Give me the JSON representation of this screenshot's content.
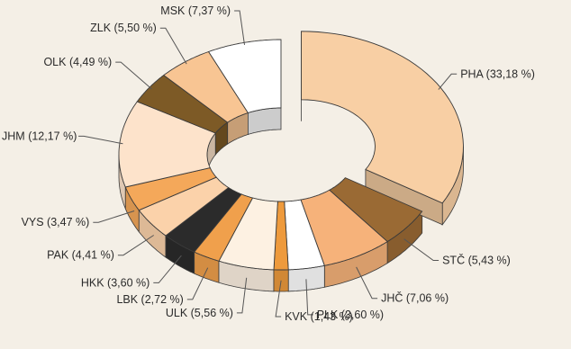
{
  "chart_data": {
    "type": "pie",
    "style": "3d-exploded-donut",
    "title": "",
    "legend": "none",
    "slices": [
      {
        "label": "PHA (33,18 %)",
        "value": 33.18,
        "color": "#f8cfa4",
        "exploded": true
      },
      {
        "label": "STČ (5,43 %)",
        "value": 5.43,
        "color": "#9a6a34"
      },
      {
        "label": "JHČ (7,06 %)",
        "value": 7.06,
        "color": "#f6b27a"
      },
      {
        "label": "PLK (3,60 %)",
        "value": 3.6,
        "color": "#ffffff"
      },
      {
        "label": "KVK (1,43 %)",
        "value": 1.43,
        "color": "#ee9a3c"
      },
      {
        "label": "ULK (5,56 %)",
        "value": 5.56,
        "color": "#fdf1e2"
      },
      {
        "label": "LBK (2,72 %)",
        "value": 2.72,
        "color": "#f0a04c"
      },
      {
        "label": "HKK (3,60 %)",
        "value": 3.6,
        "color": "#2b2b2b"
      },
      {
        "label": "PAK (4,41 %)",
        "value": 4.41,
        "color": "#fbd2aa"
      },
      {
        "label": "VYS (3,47 %)",
        "value": 3.47,
        "color": "#f4a85a"
      },
      {
        "label": "JHM (12,17 %)",
        "value": 12.17,
        "color": "#fde3cb"
      },
      {
        "label": "OLK (4,49 %)",
        "value": 4.49,
        "color": "#7d5a26"
      },
      {
        "label": "ZLK (5,50 %)",
        "value": 5.5,
        "color": "#f8c593"
      },
      {
        "label": "MSK (7,37 %)",
        "value": 7.37,
        "color": "#ffffff"
      }
    ]
  }
}
